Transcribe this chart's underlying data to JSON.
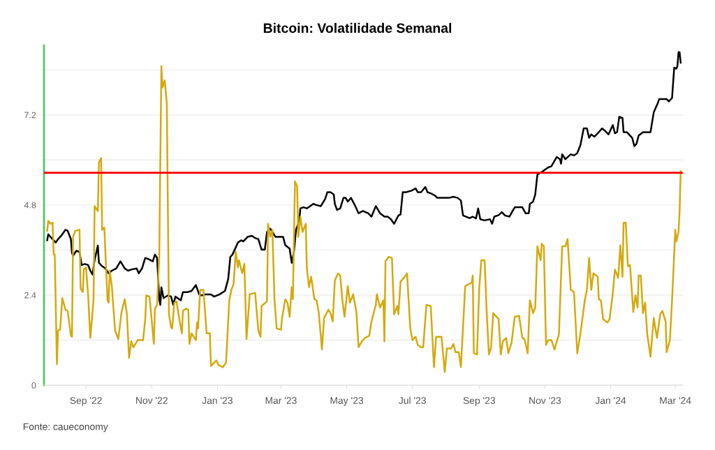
{
  "chart_data": {
    "type": "line",
    "title": "Bitcoin: Volatilidade Semanal",
    "annotations": [
      "Fonte: caueconomy"
    ],
    "xlim": [
      "2022-07-24",
      "2024-03-08"
    ],
    "xticks": [
      {
        "value": "2022-09-01",
        "label": "Sep '22"
      },
      {
        "value": "2022-11-01",
        "label": "Nov '22"
      },
      {
        "value": "2023-01-01",
        "label": "Jan '23"
      },
      {
        "value": "2023-03-01",
        "label": "Mar '23"
      },
      {
        "value": "2023-05-01",
        "label": "May '23"
      },
      {
        "value": "2023-07-01",
        "label": "Jul '23"
      },
      {
        "value": "2023-09-01",
        "label": "Sep '23"
      },
      {
        "value": "2023-11-01",
        "label": "Nov '23"
      },
      {
        "value": "2024-01-01",
        "label": "Jan '24"
      },
      {
        "value": "2024-03-01",
        "label": "Mar '24"
      }
    ],
    "ylim": [
      0,
      9.05
    ],
    "yticks": [
      0,
      {
        "value": 1.2,
        "label": null
      },
      2.4,
      {
        "value": 3.6,
        "label": null
      },
      4.8,
      {
        "value": 6.0,
        "label": null
      },
      7.2,
      {
        "value": 8.4,
        "label": null
      }
    ],
    "grid": "y",
    "marker": "none",
    "line_style": "solid",
    "ref_lines": [
      {
        "axis": "y",
        "value": 5.66,
        "color": "#ff0000"
      }
    ],
    "series": [
      {
        "color": "#000000",
        "x": [
          "2022-07-27",
          "2022-07-28",
          "2022-08-01",
          "2022-08-04",
          "2022-08-06",
          "2022-08-09",
          "2022-08-13",
          "2022-08-15",
          "2022-08-18",
          "2022-08-19",
          "2022-08-20",
          "2022-08-23",
          "2022-08-26",
          "2022-08-28",
          "2022-08-31",
          "2022-09-03",
          "2022-09-05",
          "2022-09-07",
          "2022-09-09",
          "2022-09-12",
          "2022-09-13",
          "2022-09-16",
          "2022-09-19",
          "2022-09-22",
          "2022-09-25",
          "2022-09-29",
          "2022-10-03",
          "2022-10-07",
          "2022-10-10",
          "2022-10-13",
          "2022-10-18",
          "2022-10-20",
          "2022-10-23",
          "2022-10-26",
          "2022-10-29",
          "2022-11-02",
          "2022-11-04",
          "2022-11-06",
          "2022-11-08",
          "2022-11-09",
          "2022-11-10",
          "2022-11-12",
          "2022-11-16",
          "2022-11-19",
          "2022-11-21",
          "2022-11-23",
          "2022-11-28",
          "2022-11-30",
          "2022-12-04",
          "2022-12-08",
          "2022-12-12",
          "2022-12-15",
          "2022-12-17",
          "2022-12-21",
          "2022-12-26",
          "2022-12-29",
          "2023-01-03",
          "2023-01-08",
          "2023-01-11",
          "2023-01-13",
          "2023-01-15",
          "2023-01-18",
          "2023-01-20",
          "2023-01-23",
          "2023-01-25",
          "2023-01-29",
          "2023-02-02",
          "2023-02-05",
          "2023-02-08",
          "2023-02-11",
          "2023-02-14",
          "2023-02-16",
          "2023-02-19",
          "2023-02-24",
          "2023-03-03",
          "2023-03-05",
          "2023-03-09",
          "2023-03-11",
          "2023-03-13",
          "2023-03-15",
          "2023-03-18",
          "2023-03-19",
          "2023-03-22",
          "2023-03-25",
          "2023-03-28",
          "2023-03-31",
          "2023-04-03",
          "2023-04-07",
          "2023-04-11",
          "2023-04-13",
          "2023-04-16",
          "2023-04-19",
          "2023-04-20",
          "2023-04-22",
          "2023-04-25",
          "2023-04-28",
          "2023-04-30",
          "2023-05-02",
          "2023-05-05",
          "2023-05-09",
          "2023-05-12",
          "2023-05-16",
          "2023-05-21",
          "2023-05-24",
          "2023-05-28",
          "2023-06-01",
          "2023-06-05",
          "2023-06-08",
          "2023-06-11",
          "2023-06-14",
          "2023-06-18",
          "2023-06-20",
          "2023-06-22",
          "2023-06-25",
          "2023-06-30",
          "2023-07-04",
          "2023-07-06",
          "2023-07-09",
          "2023-07-13",
          "2023-07-15",
          "2023-07-18",
          "2023-07-22",
          "2023-07-24",
          "2023-07-28",
          "2023-08-01",
          "2023-08-04",
          "2023-08-08",
          "2023-08-12",
          "2023-08-15",
          "2023-08-17",
          "2023-08-23",
          "2023-08-26",
          "2023-08-29",
          "2023-08-31",
          "2023-09-02",
          "2023-09-06",
          "2023-09-11",
          "2023-09-13",
          "2023-09-15",
          "2023-09-19",
          "2023-09-22",
          "2023-09-25",
          "2023-09-29",
          "2023-10-02",
          "2023-10-04",
          "2023-10-11",
          "2023-10-14",
          "2023-10-17",
          "2023-10-18",
          "2023-10-21",
          "2023-10-23",
          "2023-10-25",
          "2023-10-29",
          "2023-11-01",
          "2023-11-04",
          "2023-11-07",
          "2023-11-12",
          "2023-11-15",
          "2023-11-16",
          "2023-11-17",
          "2023-11-20",
          "2023-11-25",
          "2023-11-28",
          "2023-12-01",
          "2023-12-04",
          "2023-12-07",
          "2023-12-10",
          "2023-12-12",
          "2023-12-14",
          "2023-12-17",
          "2023-12-21",
          "2023-12-24",
          "2023-12-27",
          "2023-12-30",
          "2024-01-03",
          "2024-01-05",
          "2024-01-07",
          "2024-01-09",
          "2024-01-12",
          "2024-01-13",
          "2024-01-16",
          "2024-01-19",
          "2024-01-21",
          "2024-01-23",
          "2024-01-25",
          "2024-01-27",
          "2024-01-31",
          "2024-02-04",
          "2024-02-07",
          "2024-02-10",
          "2024-02-14",
          "2024-02-15",
          "2024-02-19",
          "2024-02-22",
          "2024-02-24",
          "2024-02-27",
          "2024-02-29",
          "2024-03-02",
          "2024-03-03",
          "2024-03-04",
          "2024-03-05",
          "2024-03-06"
        ],
        "values": [
          3.86,
          4.02,
          3.89,
          3.8,
          3.89,
          3.98,
          4.14,
          4.11,
          3.89,
          3.52,
          3.45,
          3.58,
          3.55,
          3.2,
          3.23,
          3.2,
          3.05,
          2.95,
          3.33,
          3.72,
          3.26,
          3.17,
          3.11,
          2.98,
          3.05,
          3.11,
          3.3,
          3.11,
          3.05,
          3.08,
          3.11,
          2.98,
          3.11,
          3.39,
          3.36,
          3.3,
          3.48,
          3.39,
          2.29,
          2.14,
          2.61,
          2.32,
          2.39,
          2.36,
          2.14,
          2.36,
          2.26,
          2.48,
          2.48,
          2.51,
          2.67,
          2.42,
          2.39,
          2.42,
          2.42,
          2.36,
          2.42,
          2.51,
          2.83,
          3.42,
          3.48,
          3.67,
          3.8,
          3.86,
          3.83,
          3.95,
          3.98,
          3.92,
          3.89,
          3.61,
          3.61,
          4.08,
          4.17,
          3.95,
          3.95,
          3.73,
          3.64,
          3.26,
          3.55,
          4.14,
          4.39,
          4.71,
          4.74,
          4.71,
          4.77,
          4.83,
          4.8,
          4.77,
          4.96,
          5.14,
          5.14,
          5.08,
          4.83,
          4.67,
          4.71,
          4.99,
          4.99,
          4.89,
          4.99,
          4.77,
          4.58,
          4.64,
          4.58,
          4.49,
          4.77,
          4.58,
          4.49,
          4.49,
          4.42,
          4.3,
          4.52,
          4.55,
          5.14,
          5.14,
          5.18,
          5.24,
          5.14,
          5.14,
          5.28,
          5.14,
          5.11,
          5.05,
          4.99,
          4.99,
          4.99,
          4.99,
          5.02,
          4.99,
          4.92,
          4.52,
          4.45,
          4.49,
          4.44,
          4.71,
          4.42,
          4.39,
          4.42,
          4.3,
          4.49,
          4.53,
          4.61,
          4.52,
          4.49,
          4.64,
          4.74,
          4.74,
          4.58,
          4.58,
          4.83,
          4.89,
          5.08,
          5.61,
          5.68,
          5.74,
          5.8,
          5.83,
          6.08,
          6.02,
          5.9,
          6.15,
          6.02,
          6.15,
          6.12,
          6.18,
          6.4,
          6.84,
          6.84,
          6.59,
          6.68,
          6.62,
          6.74,
          6.84,
          6.77,
          6.68,
          6.93,
          6.71,
          6.74,
          7.15,
          7.12,
          6.74,
          6.74,
          6.65,
          6.59,
          6.37,
          6.43,
          6.65,
          6.74,
          6.74,
          6.74,
          7.27,
          7.53,
          7.62,
          7.62,
          7.62,
          7.56,
          7.65,
          8.46,
          8.43,
          8.5,
          8.87,
          8.87,
          8.59
        ]
      },
      {
        "color": "#d4a90e",
        "x": [
          "2022-07-27",
          "2022-07-28",
          "2022-07-30",
          "2022-08-01",
          "2022-08-02",
          "2022-08-03",
          "2022-08-05",
          "2022-08-06",
          "2022-08-08",
          "2022-08-10",
          "2022-08-13",
          "2022-08-15",
          "2022-08-18",
          "2022-08-19",
          "2022-08-20",
          "2022-08-22",
          "2022-08-26",
          "2022-08-27",
          "2022-08-29",
          "2022-08-30",
          "2022-09-01",
          "2022-09-03",
          "2022-09-05",
          "2022-09-08",
          "2022-09-09",
          "2022-09-12",
          "2022-09-13",
          "2022-09-15",
          "2022-09-16",
          "2022-09-18",
          "2022-09-21",
          "2022-09-22",
          "2022-09-23",
          "2022-09-25",
          "2022-09-28",
          "2022-10-01",
          "2022-10-04",
          "2022-10-07",
          "2022-10-09",
          "2022-10-11",
          "2022-10-13",
          "2022-10-15",
          "2022-10-19",
          "2022-10-24",
          "2022-10-26",
          "2022-10-27",
          "2022-10-30",
          "2022-11-03",
          "2022-11-04",
          "2022-11-06",
          "2022-11-08",
          "2022-11-10",
          "2022-11-11",
          "2022-11-13",
          "2022-11-15",
          "2022-11-17",
          "2022-11-19",
          "2022-11-20",
          "2022-11-22",
          "2022-11-24",
          "2022-11-27",
          "2022-11-29",
          "2022-11-30",
          "2022-12-03",
          "2022-12-05",
          "2022-12-06",
          "2022-12-08",
          "2022-12-12",
          "2022-12-13",
          "2022-12-14",
          "2022-12-16",
          "2022-12-19",
          "2022-12-22",
          "2022-12-25",
          "2022-12-26",
          "2022-12-31",
          "2023-01-02",
          "2023-01-06",
          "2023-01-09",
          "2023-01-12",
          "2023-01-14",
          "2023-01-16",
          "2023-01-18",
          "2023-01-20",
          "2023-01-21",
          "2023-01-24",
          "2023-01-26",
          "2023-01-28",
          "2023-01-31",
          "2023-02-05",
          "2023-02-08",
          "2023-02-10",
          "2023-02-11",
          "2023-02-16",
          "2023-02-17",
          "2023-02-19",
          "2023-02-21",
          "2023-02-23",
          "2023-02-25",
          "2023-03-01",
          "2023-03-02",
          "2023-03-05",
          "2023-03-07",
          "2023-03-09",
          "2023-03-11",
          "2023-03-12",
          "2023-03-14",
          "2023-03-16",
          "2023-03-17",
          "2023-03-19",
          "2023-03-21",
          "2023-03-24",
          "2023-03-25",
          "2023-03-27",
          "2023-03-29",
          "2023-04-01",
          "2023-04-03",
          "2023-04-05",
          "2023-04-08",
          "2023-04-10",
          "2023-04-14",
          "2023-04-16",
          "2023-04-18",
          "2023-04-20",
          "2023-04-23",
          "2023-04-25",
          "2023-04-27",
          "2023-04-29",
          "2023-05-02",
          "2023-05-04",
          "2023-05-07",
          "2023-05-10",
          "2023-05-12",
          "2023-05-15",
          "2023-05-18",
          "2023-05-22",
          "2023-05-24",
          "2023-05-28",
          "2023-05-29",
          "2023-06-01",
          "2023-06-04",
          "2023-06-05",
          "2023-06-06",
          "2023-06-09",
          "2023-06-12",
          "2023-06-14",
          "2023-06-17",
          "2023-06-18",
          "2023-06-20",
          "2023-06-24",
          "2023-06-26",
          "2023-06-29",
          "2023-07-01",
          "2023-07-04",
          "2023-07-06",
          "2023-07-09",
          "2023-07-11",
          "2023-07-14",
          "2023-07-18",
          "2023-07-21",
          "2023-07-23",
          "2023-07-28",
          "2023-07-31",
          "2023-08-02",
          "2023-08-06",
          "2023-08-08",
          "2023-08-10",
          "2023-08-13",
          "2023-08-15",
          "2023-08-19",
          "2023-08-25",
          "2023-08-26",
          "2023-08-27",
          "2023-08-30",
          "2023-09-01",
          "2023-09-03",
          "2023-09-06",
          "2023-09-08",
          "2023-09-10",
          "2023-09-12",
          "2023-09-14",
          "2023-09-19",
          "2023-09-21",
          "2023-09-23",
          "2023-09-26",
          "2023-09-28",
          "2023-10-01",
          "2023-10-04",
          "2023-10-08",
          "2023-10-11",
          "2023-10-13",
          "2023-10-16",
          "2023-10-18",
          "2023-10-21",
          "2023-10-23",
          "2023-10-25",
          "2023-10-28",
          "2023-10-29",
          "2023-10-31",
          "2023-11-02",
          "2023-11-04",
          "2023-11-07",
          "2023-11-10",
          "2023-11-12",
          "2023-11-14",
          "2023-11-17",
          "2023-11-20",
          "2023-11-22",
          "2023-11-25",
          "2023-11-28",
          "2023-12-01",
          "2023-12-04",
          "2023-12-08",
          "2023-12-10",
          "2023-12-12",
          "2023-12-14",
          "2023-12-16",
          "2023-12-20",
          "2023-12-21",
          "2023-12-23",
          "2023-12-25",
          "2023-12-29",
          "2023-12-31",
          "2024-01-03",
          "2024-01-05",
          "2024-01-08",
          "2024-01-10",
          "2024-01-12",
          "2024-01-13",
          "2024-01-15",
          "2024-01-17",
          "2024-01-19",
          "2024-01-22",
          "2024-01-24",
          "2024-01-26",
          "2024-01-27",
          "2024-01-29",
          "2024-01-31",
          "2024-02-02",
          "2024-02-04",
          "2024-02-07",
          "2024-02-10",
          "2024-02-13",
          "2024-02-16",
          "2024-02-18",
          "2024-02-21",
          "2024-02-22",
          "2024-02-25",
          "2024-02-27",
          "2024-03-01",
          "2024-03-02",
          "2024-03-04",
          "2024-03-05",
          "2024-03-06"
        ],
        "values": [
          4.11,
          4.38,
          4.3,
          4.33,
          3.48,
          3.48,
          0.56,
          1.45,
          1.48,
          2.32,
          2.01,
          1.98,
          1.32,
          1.29,
          3.95,
          4.11,
          4.14,
          2.58,
          2.48,
          3.08,
          3.14,
          2.39,
          1.26,
          2.26,
          4.77,
          4.64,
          5.93,
          6.05,
          4.14,
          4.2,
          2.26,
          2.2,
          3.05,
          2.64,
          1.45,
          1.23,
          1.95,
          2.29,
          1.89,
          0.73,
          1.17,
          1.01,
          1.2,
          1.2,
          1.76,
          2.39,
          2.36,
          1.1,
          2.04,
          2.14,
          3.45,
          8.5,
          7.93,
          8.12,
          7.52,
          1.89,
          1.54,
          1.51,
          2.2,
          2.23,
          1.7,
          1.38,
          1.98,
          2.04,
          2.01,
          1.1,
          1.38,
          1.2,
          1.67,
          1.51,
          2.54,
          2.54,
          1.38,
          1.38,
          0.51,
          0.66,
          0.54,
          0.48,
          0.6,
          2.26,
          2.54,
          2.7,
          3.55,
          3.14,
          3.33,
          2.98,
          3.23,
          1.23,
          2.42,
          2.46,
          1.45,
          1.29,
          2.11,
          2.23,
          4.3,
          3.95,
          4.14,
          2.26,
          1.51,
          1.48,
          1.79,
          2.29,
          2.2,
          1.82,
          2.61,
          2.29,
          5.43,
          5.3,
          3.95,
          4.49,
          4.08,
          4.3,
          3.11,
          2.61,
          2.89,
          2.29,
          2.26,
          1.95,
          0.95,
          1.79,
          2.01,
          1.92,
          1.7,
          2.79,
          2.98,
          2.92,
          2.26,
          1.82,
          2.64,
          2.2,
          2.42,
          1.95,
          1.01,
          1.17,
          1.26,
          1.32,
          1.7,
          2.14,
          2.42,
          2.07,
          2.26,
          1.17,
          3.3,
          3.42,
          3.39,
          1.89,
          2.11,
          1.89,
          2.76,
          2.89,
          2.98,
          1.51,
          1.2,
          1.29,
          1.07,
          1.01,
          1.01,
          2.14,
          2.11,
          0.48,
          1.29,
          1.29,
          0.35,
          0.98,
          0.98,
          1.1,
          0.88,
          0.88,
          0.48,
          2.64,
          2.73,
          2.92,
          0.85,
          0.82,
          2.58,
          3.33,
          3.33,
          1.92,
          0.82,
          1.01,
          1.92,
          1.76,
          0.82,
          1.17,
          1.26,
          0.85,
          1.13,
          1.82,
          1.85,
          1.26,
          1.23,
          0.85,
          2.26,
          1.92,
          2.07,
          3.7,
          3.33,
          3.77,
          3.7,
          1.07,
          1.2,
          1.2,
          0.95,
          1.17,
          1.35,
          3.7,
          3.7,
          3.89,
          2.54,
          2.48,
          0.85,
          1.38,
          2.26,
          2.54,
          3.39,
          2.54,
          2.98,
          2.89,
          2.29,
          2.26,
          1.76,
          1.67,
          1.76,
          2.45,
          3.08,
          2.86,
          3.73,
          2.89,
          4.33,
          4.33,
          3.17,
          3.2,
          1.95,
          2.39,
          2.07,
          2.92,
          2.92,
          1.92,
          2.2,
          1.35,
          0.76,
          1.79,
          1.26,
          1.89,
          1.98,
          1.7,
          0.88,
          1.2,
          2.26,
          4.14,
          3.83,
          4.08,
          4.64,
          5.7
        ]
      }
    ]
  }
}
